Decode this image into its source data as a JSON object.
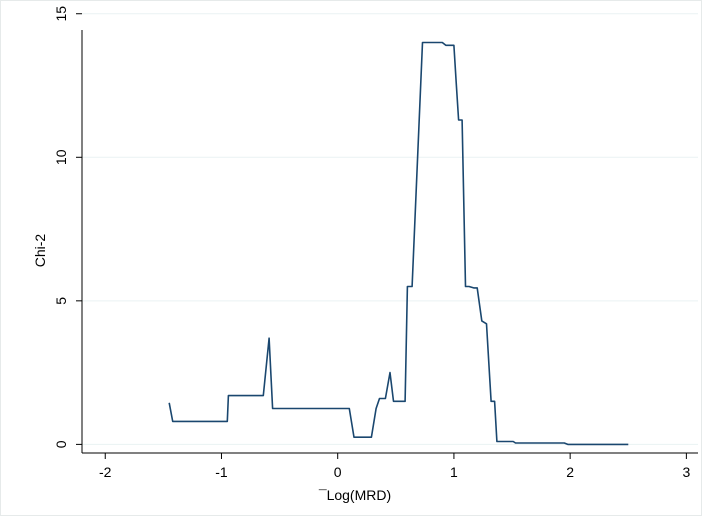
{
  "chart_data": {
    "type": "line",
    "title": "",
    "xlabel": "¯Log(MRD)",
    "ylabel": "Chi-2",
    "xlim": [
      -2.2,
      3.1
    ],
    "ylim": [
      -0.3,
      15.2
    ],
    "xticks": [
      -2,
      -1,
      0,
      1,
      2,
      3
    ],
    "yticks": [
      0,
      5,
      10,
      15
    ],
    "grid": true,
    "line_color": "#1a476f",
    "series": [
      {
        "x": [
          -1.45,
          -1.42,
          -0.95,
          -0.94,
          -0.69,
          -0.64,
          -0.59,
          -0.56,
          0.1,
          0.14,
          0.29,
          0.33,
          0.36,
          0.41,
          0.45,
          0.48,
          0.58,
          0.6,
          0.64,
          0.73,
          0.75,
          0.86,
          0.9,
          0.93,
          0.99,
          1.0,
          1.02,
          1.04,
          1.07,
          1.1,
          1.13,
          1.17,
          1.2,
          1.24,
          1.28,
          1.32,
          1.35,
          1.37,
          1.41,
          1.44,
          1.5,
          1.51,
          1.53,
          1.56,
          1.95,
          1.98,
          2.5
        ],
        "y": [
          1.45,
          0.8,
          0.8,
          1.7,
          1.7,
          1.7,
          3.7,
          1.25,
          1.25,
          0.25,
          0.25,
          1.25,
          1.6,
          1.6,
          2.5,
          1.5,
          1.5,
          5.5,
          5.5,
          14.0,
          14.0,
          14.0,
          14.0,
          13.9,
          13.9,
          13.9,
          12.6,
          11.3,
          11.3,
          5.5,
          5.5,
          5.45,
          5.45,
          4.3,
          4.2,
          1.5,
          1.5,
          0.1,
          0.1,
          0.1,
          0.1,
          0.1,
          0.05,
          0.05,
          0.05,
          0.0,
          0.0
        ]
      }
    ]
  }
}
